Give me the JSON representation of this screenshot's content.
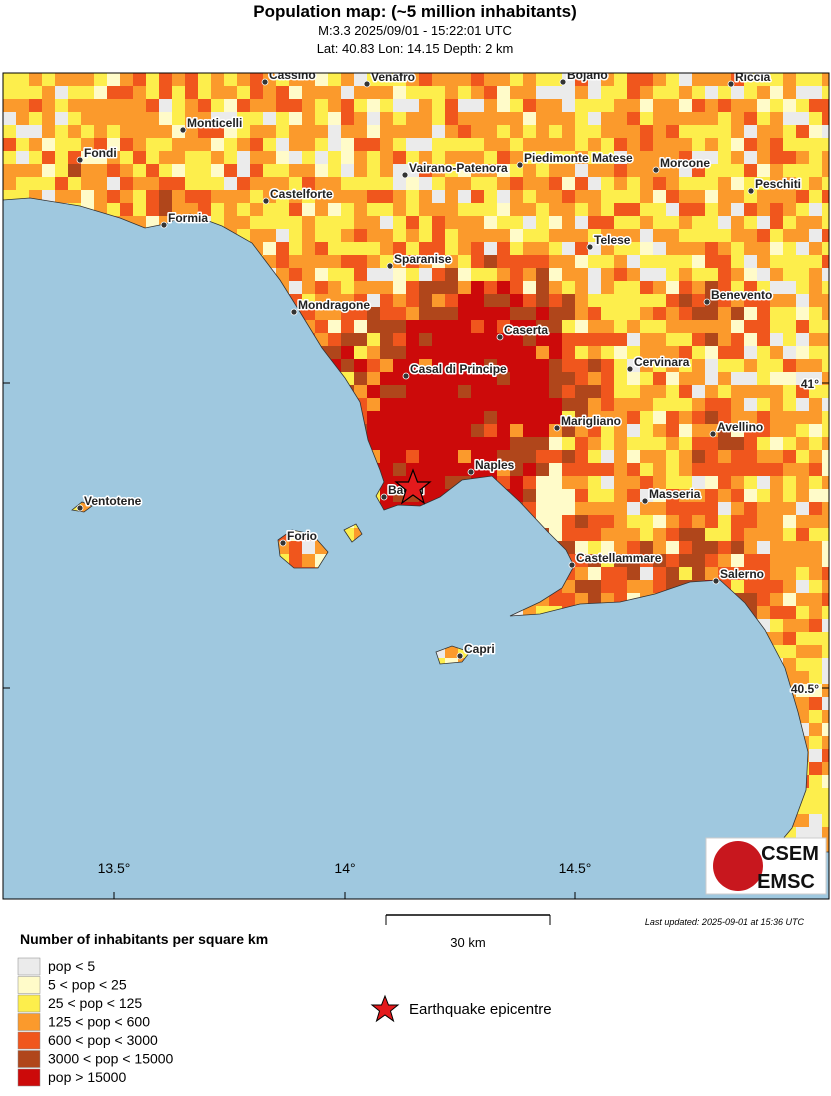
{
  "header": {
    "title": "Population map: (~5 million inhabitants)",
    "event": "M:3.3 2025/09/01 - 15:22:01 UTC",
    "location": "Lat: 40.83 Lon: 14.15 Depth: 2 km"
  },
  "map": {
    "cities": [
      "Cassino",
      "Venafro",
      "Bojano",
      "Riccia",
      "Monticelli",
      "Fondi",
      "Vairano-Patenora",
      "Piedimonte Matese",
      "Morcone",
      "Peschiti",
      "Castelforte",
      "Formia",
      "Telese",
      "Sparanise",
      "Benevento",
      "Mondragone",
      "Caserta",
      "Cervinara",
      "Casal di Principe",
      "Marigliano",
      "Avellino",
      "Naples",
      "Bacoli",
      "Masseria",
      "Forio",
      "Castellammare",
      "Salerno",
      "Capri",
      "Ventotene"
    ],
    "lon_labels": [
      "13.5°",
      "14°",
      "14.5°"
    ],
    "lat_labels": [
      "41°",
      "40.5°"
    ],
    "sea_color": "#9fc8df",
    "epicentre_color": "#e41a1c"
  },
  "logo": {
    "top": "CSEM",
    "bottom": "EMSC"
  },
  "scale": "30 km",
  "updated": "Last updated: 2025-09-01 at 15:36 UTC",
  "legend": {
    "title": "Number of inhabitants per square km",
    "items": [
      {
        "label": "pop < 5",
        "color": "#ebebeb"
      },
      {
        "label": "5 < pop < 25",
        "color": "#fffbc9"
      },
      {
        "label": "25 < pop < 125",
        "color": "#fdee4c"
      },
      {
        "label": "125 < pop < 600",
        "color": "#fb9a2c"
      },
      {
        "label": "600 < pop < 3000",
        "color": "#f0561d"
      },
      {
        "label": "3000 < pop < 15000",
        "color": "#b0461b"
      },
      {
        "label": "pop > 15000",
        "color": "#cc0a0a"
      }
    ],
    "epicentre": "Earthquake epicentre"
  }
}
